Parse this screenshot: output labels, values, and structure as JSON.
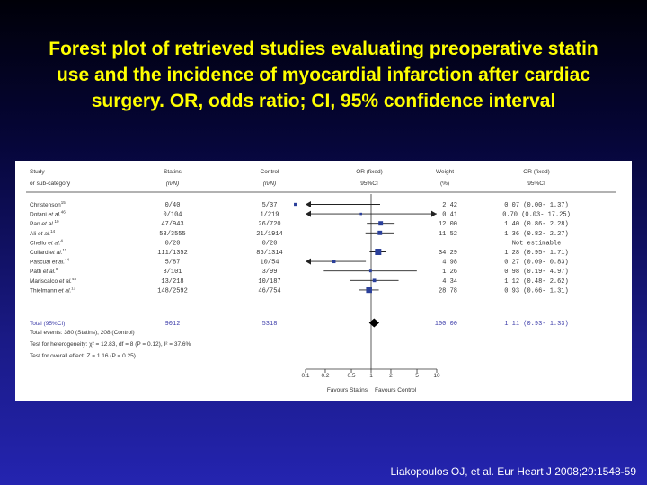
{
  "slide": {
    "title_lines": [
      "Forest plot of retrieved studies evaluating preoperative statin",
      "use and the incidence of myocardial infarction after cardiac",
      "surgery. OR, odds ratio; CI, 95% confidence interval"
    ],
    "citation": "Liakopoulos OJ, et al. Eur Heart J 2008;29:1548-59",
    "colors": {
      "title": "#ffff00",
      "background_top": "#000008",
      "background_bottom": "#2424b0",
      "marker": "#2a3f9a",
      "summary_text": "#3a3aa8"
    }
  },
  "chart_data": {
    "type": "forest",
    "x_scale": "log",
    "xlim": [
      0.1,
      10
    ],
    "reference_line": 1,
    "headers": {
      "study": [
        "Study",
        "or sub-category"
      ],
      "statins": [
        "Statins",
        "(n/N)"
      ],
      "control": [
        "Control",
        "(n/N)"
      ],
      "or": [
        "OR (fixed)",
        "95%CI"
      ],
      "weight": [
        "Weight",
        "(%)"
      ],
      "or_ci": [
        "OR (fixed)",
        "95%CI"
      ]
    },
    "studies": [
      {
        "name": "Christenson",
        "sup": "15",
        "statins": "0/40",
        "control": "5/37",
        "weight": "2.42",
        "or_text": "0.07 (0.00- 1.37)",
        "or": 0.07,
        "lo": 0.0,
        "hi": 1.37
      },
      {
        "name": "Dotani",
        "sup": "46",
        "etal": true,
        "statins": "0/104",
        "control": "1/219",
        "weight": "0.41",
        "or_text": "0.70 (0.03- 17.25)",
        "or": 0.7,
        "lo": 0.03,
        "hi": 17.25
      },
      {
        "name": "Pan",
        "sup": "10",
        "etal": true,
        "statins": "47/943",
        "control": "26/720",
        "weight": "12.00",
        "or_text": "1.40 (0.86- 2.28)",
        "or": 1.4,
        "lo": 0.86,
        "hi": 2.28
      },
      {
        "name": "Ali",
        "sup": "14",
        "etal": true,
        "statins": "53/3555",
        "control": "21/1914",
        "weight": "11.52",
        "or_text": "1.36 (0.82- 2.27)",
        "or": 1.36,
        "lo": 0.82,
        "hi": 2.27
      },
      {
        "name": "Chello",
        "sup": "4",
        "etal": true,
        "statins": "0/20",
        "control": "0/20",
        "weight": "",
        "or_text": "Not estimable",
        "or": null,
        "lo": null,
        "hi": null
      },
      {
        "name": "Collard",
        "sup": "11",
        "etal": true,
        "statins": "111/1352",
        "control": "86/1314",
        "weight": "34.29",
        "or_text": "1.28 (0.95- 1.71)",
        "or": 1.28,
        "lo": 0.95,
        "hi": 1.71
      },
      {
        "name": "Pascual",
        "sup": "44",
        "etal": true,
        "statins": "5/87",
        "control": "10/54",
        "weight": "4.98",
        "or_text": "0.27 (0.09- 0.83)",
        "or": 0.27,
        "lo": 0.09,
        "hi": 0.83
      },
      {
        "name": "Patti",
        "sup": "8",
        "etal": true,
        "statins": "3/101",
        "control": "3/99",
        "weight": "1.26",
        "or_text": "0.98 (0.19- 4.97)",
        "or": 0.98,
        "lo": 0.19,
        "hi": 4.97
      },
      {
        "name": "Mariscalco",
        "sup": "48",
        "etal": true,
        "statins": "13/218",
        "control": "10/187",
        "weight": "4.34",
        "or_text": "1.12 (0.48- 2.62)",
        "or": 1.12,
        "lo": 0.48,
        "hi": 2.62
      },
      {
        "name": "Thielmann",
        "sup": "13",
        "etal": true,
        "statins": "148/2592",
        "control": "46/754",
        "weight": "28.78",
        "or_text": "0.93 (0.66- 1.31)",
        "or": 0.93,
        "lo": 0.66,
        "hi": 1.31
      }
    ],
    "total": {
      "label": "Total (95%CI)",
      "statins": "9012",
      "control": "5318",
      "weight": "100.00",
      "or_text": "1.11 (0.93- 1.33)",
      "or": 1.11,
      "lo": 0.93,
      "hi": 1.33
    },
    "footnotes": {
      "events": "Total events: 380 (Statins), 208 (Control)",
      "heterogeneity": "Test for heterogeneity: χ² = 12.83, df = 8 (P = 0.12), I² = 37.6%",
      "overall": "Test for overall effect: Z = 1.16 (P = 0.25)"
    },
    "ticks": [
      {
        "value": 0.1,
        "label": "0.1"
      },
      {
        "value": 0.2,
        "label": "0.2"
      },
      {
        "value": 0.5,
        "label": "0.5"
      },
      {
        "value": 1,
        "label": "1"
      },
      {
        "value": 2,
        "label": "2"
      },
      {
        "value": 5,
        "label": "5"
      },
      {
        "value": 10,
        "label": "10"
      }
    ],
    "favours_left": "Favours Statins",
    "favours_right": "Favours Control"
  }
}
